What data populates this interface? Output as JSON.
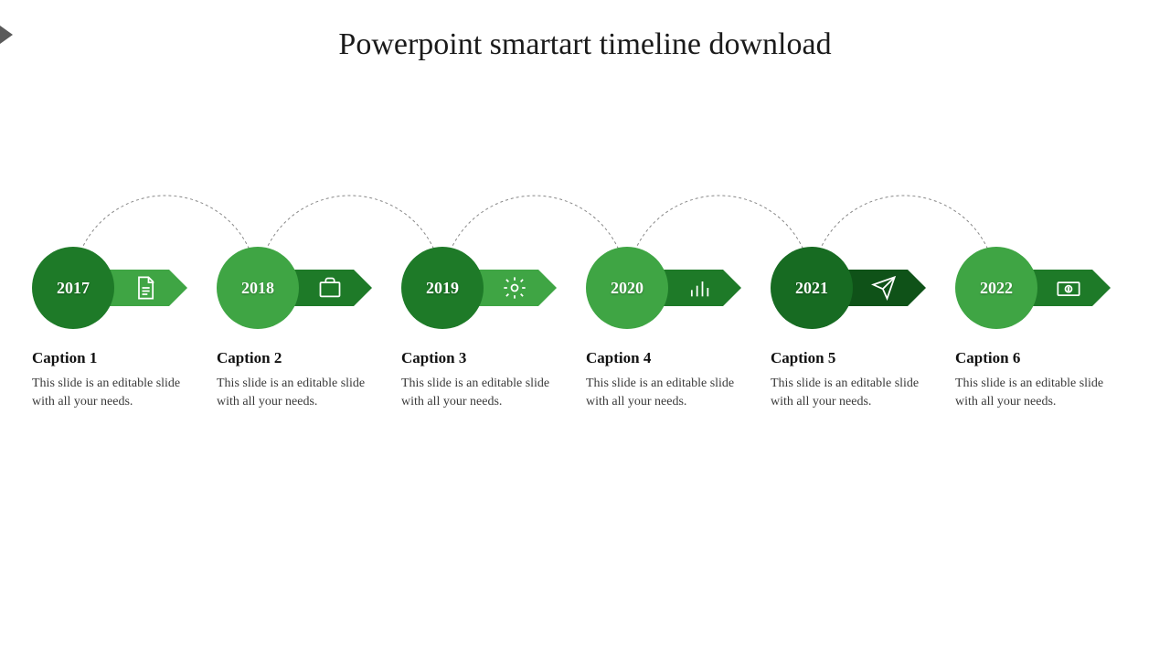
{
  "title": "Powerpoint smartart timeline download",
  "arc": {
    "stroke": "#888888",
    "dash": "3,3",
    "stroke_width": 1
  },
  "colors": {
    "dark_green": "#1e7a28",
    "mid_green": "#3fa544",
    "darker_green": "#176b22"
  },
  "items": [
    {
      "year": "2017",
      "caption": "Caption 1",
      "desc": "This slide is an editable slide with all your needs.",
      "circle_color": "#1e7a28",
      "arrow_color": "#3fa544",
      "icon": "document"
    },
    {
      "year": "2018",
      "caption": "Caption 2",
      "desc": "This slide is an editable slide with all your needs.",
      "circle_color": "#3fa544",
      "arrow_color": "#1e7a28",
      "icon": "briefcase"
    },
    {
      "year": "2019",
      "caption": "Caption 3",
      "desc": "This slide is an editable slide with all your needs.",
      "circle_color": "#1e7a28",
      "arrow_color": "#3fa544",
      "icon": "gear"
    },
    {
      "year": "2020",
      "caption": "Caption 4",
      "desc": "This slide is an editable slide with all your needs.",
      "circle_color": "#3fa544",
      "arrow_color": "#1e7a28",
      "icon": "bars"
    },
    {
      "year": "2021",
      "caption": "Caption 5",
      "desc": "This slide is an editable slide with all your needs.",
      "circle_color": "#176b22",
      "arrow_color": "#0f5218",
      "icon": "plane"
    },
    {
      "year": "2022",
      "caption": "Caption 6",
      "desc": "This slide is an editable slide with all your needs.",
      "circle_color": "#3fa544",
      "arrow_color": "#1e7a28",
      "icon": "money"
    }
  ]
}
